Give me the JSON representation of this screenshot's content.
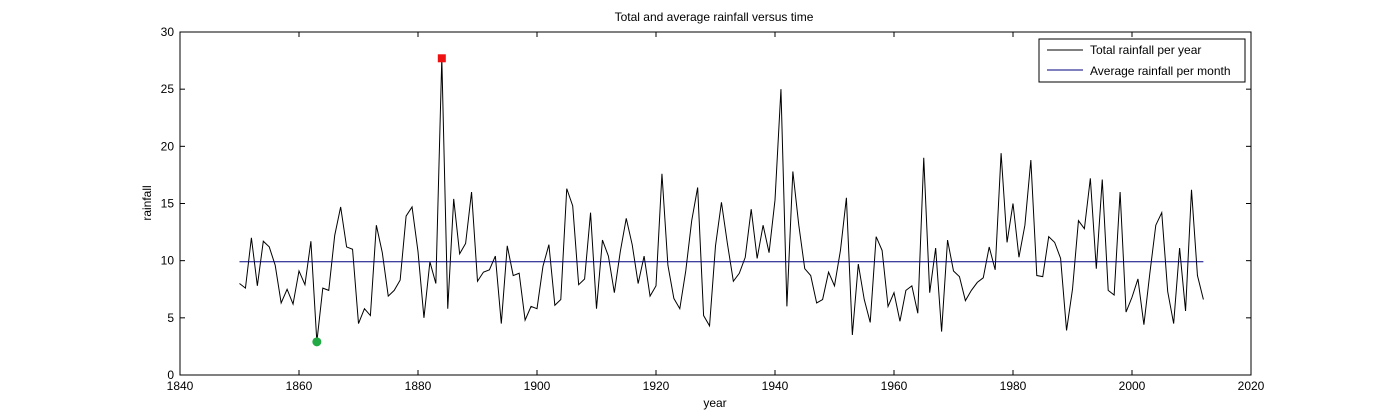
{
  "chart_data": {
    "type": "line",
    "title": "Total and average rainfall versus time",
    "xlabel": "year",
    "ylabel": "rainfall",
    "xlim": [
      1840,
      2020
    ],
    "ylim": [
      0,
      30
    ],
    "xticks": [
      1840,
      1860,
      1880,
      1900,
      1920,
      1940,
      1960,
      1980,
      2000,
      2020
    ],
    "yticks": [
      0,
      5,
      10,
      15,
      20,
      25,
      30
    ],
    "grid": false,
    "legend": {
      "placement": "top-right"
    },
    "x_start": 1850,
    "series": [
      {
        "name": "Total rainfall per year",
        "color": "#000000",
        "values": [
          8.0,
          7.6,
          12.0,
          7.8,
          11.7,
          11.2,
          9.6,
          6.3,
          7.5,
          6.2,
          9.1,
          7.9,
          11.7,
          2.9,
          7.6,
          7.4,
          12.2,
          14.7,
          11.2,
          11.0,
          4.5,
          5.8,
          5.2,
          13.1,
          10.7,
          6.9,
          7.4,
          8.3,
          13.9,
          14.7,
          10.8,
          5.0,
          9.9,
          8.0,
          27.7,
          5.8,
          15.4,
          10.6,
          11.5,
          16.0,
          8.2,
          9.0,
          9.2,
          10.4,
          4.5,
          11.3,
          8.7,
          8.9,
          4.8,
          6.0,
          5.8,
          9.5,
          11.4,
          6.1,
          6.6,
          16.3,
          14.8,
          7.9,
          8.4,
          14.2,
          5.8,
          11.8,
          10.4,
          7.2,
          10.8,
          13.7,
          11.4,
          8.0,
          10.4,
          6.9,
          7.8,
          17.6,
          9.6,
          6.7,
          5.8,
          9.1,
          13.5,
          16.4,
          5.2,
          4.3,
          11.3,
          15.1,
          11.5,
          8.2,
          8.9,
          10.3,
          14.5,
          10.2,
          13.1,
          10.7,
          15.3,
          25.0,
          6.0,
          17.8,
          13.1,
          9.3,
          8.7,
          6.3,
          6.6,
          9.0,
          7.8,
          10.9,
          15.5,
          3.5,
          9.7,
          6.6,
          4.6,
          12.1,
          10.9,
          6.0,
          7.2,
          4.7,
          7.4,
          7.8,
          5.4,
          19.0,
          7.2,
          11.1,
          3.8,
          11.8,
          9.1,
          8.6,
          6.5,
          7.4,
          8.1,
          8.5,
          11.2,
          9.2,
          19.4,
          11.6,
          15.0,
          10.3,
          13.1,
          18.8,
          8.7,
          8.6,
          12.1,
          11.6,
          10.2,
          3.9,
          7.5,
          13.5,
          12.8,
          17.2,
          9.3,
          17.1,
          7.4,
          7.0,
          16.0,
          5.5,
          6.8,
          8.4,
          4.4,
          8.9,
          13.1,
          14.2,
          7.3,
          4.5,
          11.1,
          5.6,
          16.2,
          8.7,
          6.6
        ]
      },
      {
        "name": "Average rainfall per month",
        "color": "#00007f",
        "x": [
          1850,
          2012
        ],
        "values": [
          9.9,
          9.9
        ]
      }
    ],
    "markers": [
      {
        "label": "max",
        "x": 1884,
        "y": 27.7,
        "shape": "square",
        "color": "#ee1111"
      },
      {
        "label": "min",
        "x": 1863,
        "y": 2.9,
        "shape": "circle",
        "color": "#22aa44"
      }
    ]
  }
}
